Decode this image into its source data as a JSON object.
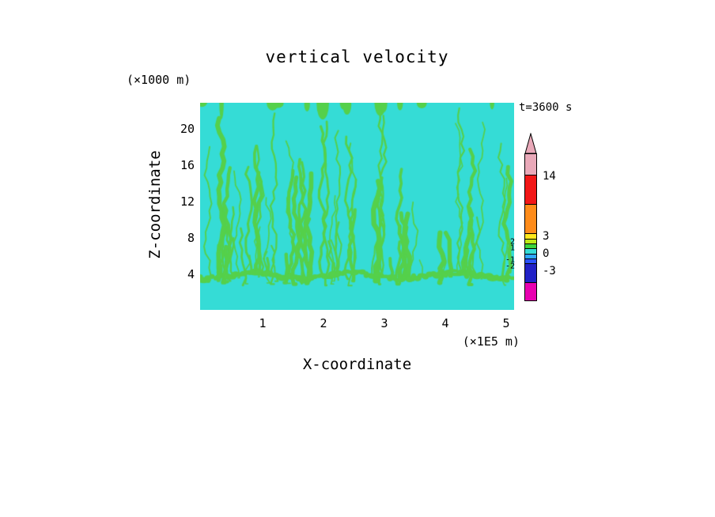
{
  "header": {
    "title": "vertical velocity",
    "y_unit_label": "(×1000 m)",
    "time_label": "t=3600 s"
  },
  "axes": {
    "x_label": "X-coordinate",
    "x_unit_label": "(×1E5 m)",
    "y_label": "Z-coordinate",
    "x_ticks": [
      "1",
      "2",
      "3",
      "4",
      "5"
    ],
    "y_ticks": [
      "20",
      "16",
      "12",
      "8",
      "4"
    ]
  },
  "chart_data": {
    "type": "heatmap",
    "title": "vertical velocity",
    "time": "t=3600 s",
    "xlabel": "X-coordinate",
    "x_unit": "×1E5 m",
    "ylabel": "Z-coordinate",
    "y_unit": "×1000 m",
    "x_ticks": [
      1,
      2,
      3,
      4,
      5
    ],
    "y_ticks": [
      4,
      8,
      12,
      16,
      20
    ],
    "xlim": [
      0,
      5.15
    ],
    "ylim": [
      0.2,
      22.9
    ],
    "field": {
      "description": "Filled contour field of vertical velocity: nearly uniform background in the -1..0 band (cyan) covered by many narrow vertical streaks in the 0..1 band (green) that rise from a wavy green band near z = 4 (×1000 m); a few green patches touch the domain top; region below the band is mostly cyan.",
      "background_value_range": [
        -1,
        0
      ],
      "streak_value_range": [
        0,
        1
      ],
      "render": {
        "seed": 1337,
        "background": "#35dcd6",
        "streak": "#55d04b",
        "streaks": 72,
        "top_blobs": 14,
        "band_y_frac": 0.835
      }
    },
    "colorbar": {
      "tip_color": "#e9a9b9",
      "right_labels": [
        {
          "text": "14"
        },
        {
          "text": "3"
        },
        {
          "text": "0"
        },
        {
          "text": "-3"
        }
      ],
      "crowded_labels": [
        "2",
        "1",
        "-1",
        "-2"
      ],
      "segments": [
        {
          "color": "#e9a9b9",
          "h": 28,
          "range": [
            14,
            17
          ]
        },
        {
          "color": "#f21717",
          "h": 38,
          "range": [
            9,
            14
          ]
        },
        {
          "color": "#ff8c1a",
          "h": 38,
          "range": [
            3,
            9
          ]
        },
        {
          "color": "#ffe81c",
          "h": 8,
          "range": [
            2,
            3
          ]
        },
        {
          "color": "#bfe817",
          "h": 7,
          "range": [
            1,
            2
          ]
        },
        {
          "color": "#3cd43c",
          "h": 7,
          "range": [
            0,
            1
          ]
        },
        {
          "color": "#35dcd6",
          "h": 8,
          "range": [
            -1,
            0
          ]
        },
        {
          "color": "#2fa6ff",
          "h": 7,
          "range": [
            -2,
            -1
          ]
        },
        {
          "color": "#2a52ff",
          "h": 7,
          "range": [
            -3,
            -2
          ]
        },
        {
          "color": "#2121c6",
          "h": 25,
          "range": [
            -6,
            -3
          ]
        },
        {
          "color": "#e800b0",
          "h": 24,
          "range": [
            -9,
            -6
          ]
        }
      ]
    }
  }
}
